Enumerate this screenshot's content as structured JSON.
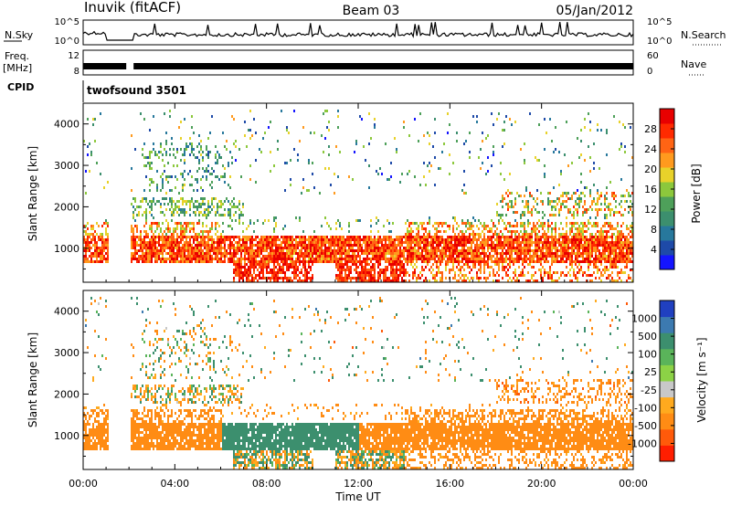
{
  "header": {
    "station": "Inuvik (fitACF)",
    "beam": "Beam 03",
    "date": "05/Jan/2012"
  },
  "top_panels": {
    "nsky_label": "N.Sky",
    "nsky_ticks": [
      "10^5",
      "10^0"
    ],
    "nsearch_label": "N.Search",
    "nsearch_ticks": [
      "10^5",
      "10^0"
    ],
    "freq_label": "Freq.",
    "freq_unit": "[MHz]",
    "freq_ticks": [
      "12",
      "8"
    ],
    "nave_label": "Nave",
    "nave_ticks": [
      "60",
      "0"
    ],
    "cpid_label": "CPID",
    "cpid_value": "twofsound 3501"
  },
  "chart_data": [
    {
      "type": "heatmap",
      "panel": "power",
      "ylabel": "Slant Range [km]",
      "xlabel": "",
      "ylim": [
        180,
        4500
      ],
      "y_ticks": [
        1000,
        2000,
        3000,
        4000
      ],
      "x_ticks_hours": [
        0,
        4,
        8,
        12,
        16,
        20,
        24
      ],
      "colorbar": {
        "label": "Power [dB]",
        "range": [
          0,
          32
        ],
        "ticks": [
          "28",
          "24",
          "20",
          "16",
          "12",
          "8",
          "4"
        ],
        "colors": [
          "#1414ff",
          "#1e4aa8",
          "#27789c",
          "#3c8f6e",
          "#4ea05a",
          "#8cc83c",
          "#e8d22a",
          "#ff9a1e",
          "#ff6414",
          "#ff2a00",
          "#e80000"
        ]
      },
      "data_gap_hours": [
        1.0,
        2.0
      ],
      "bands": [
        {
          "range_km": [
            700,
            1300
          ],
          "hours": [
            0,
            24
          ],
          "level": "high (24-32 dB)"
        },
        {
          "range_km": [
            200,
            400
          ],
          "hours": [
            7,
            14
          ],
          "level": "high (24-32 dB)"
        },
        {
          "range_km": [
            1900,
            2200
          ],
          "hours": [
            2,
            6
          ],
          "level": "medium (10-18 dB)"
        },
        {
          "range_km": [
            2500,
            3500
          ],
          "hours": [
            3,
            6
          ],
          "level": "low-medium (4-16 dB)"
        }
      ]
    },
    {
      "type": "heatmap",
      "panel": "velocity",
      "ylabel": "Slant Range [km]",
      "xlabel": "Time UT",
      "ylim": [
        180,
        4500
      ],
      "y_ticks": [
        1000,
        2000,
        3000,
        4000
      ],
      "x_ticks_hours": [
        0,
        4,
        8,
        12,
        16,
        20,
        24
      ],
      "x_tick_labels": [
        "00:00",
        "04:00",
        "08:00",
        "12:00",
        "16:00",
        "20:00",
        "00:00"
      ],
      "colorbar": {
        "label": "Velocity [m s⁻¹]",
        "ticks": [
          "1000",
          "500",
          "100",
          "25",
          "-25",
          "-100",
          "-500",
          "-1000"
        ],
        "colors": [
          "#2040c0",
          "#3c7ab0",
          "#3c8f6e",
          "#5ab45a",
          "#8cd246",
          "#c8c8c8",
          "#ffaa1e",
          "#ff8c14",
          "#ff5a0a",
          "#ff1e00"
        ]
      },
      "data_gap_hours": [
        1.0,
        2.0
      ],
      "bands": [
        {
          "range_km": [
            700,
            1600
          ],
          "hours": [
            0,
            6
          ],
          "level": "negative (-100 to -500)"
        },
        {
          "range_km": [
            700,
            1600
          ],
          "hours": [
            6,
            12
          ],
          "level": "positive (100 to 500)"
        },
        {
          "range_km": [
            700,
            1600
          ],
          "hours": [
            12,
            24
          ],
          "level": "negative (-100 to -500)"
        }
      ]
    }
  ]
}
